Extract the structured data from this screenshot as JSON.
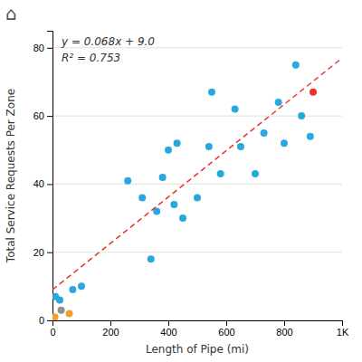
{
  "chart_data": {
    "type": "scatter",
    "x_label": "Length of Pipe (mi)",
    "y_label": "Total Service Requests Per Zone",
    "xlim": [
      0,
      1000
    ],
    "ylim": [
      0,
      85
    ],
    "xticks": [
      0,
      200,
      400,
      600,
      800,
      {
        "value": 1000,
        "label": "1K"
      }
    ],
    "yticks": [
      0,
      20,
      40,
      60,
      80
    ],
    "grid": "y",
    "annotations": [
      "⌂",
      "y = 0.068x + 9.0",
      "R² = 0.753"
    ],
    "series": [
      {
        "type": "scatter",
        "marker": "circle",
        "color": "#29a8e0",
        "x": [
          10,
          70,
          100,
          25,
          260,
          310,
          340,
          360,
          380,
          400,
          420,
          430,
          450,
          500,
          540,
          550,
          580,
          630,
          650,
          700,
          730,
          780,
          800,
          840,
          860,
          890
        ],
        "values": [
          7,
          9,
          10,
          6,
          41,
          36,
          18,
          32,
          42,
          50,
          34,
          52,
          30,
          36,
          51,
          67,
          43,
          62,
          51,
          43,
          55,
          64,
          52,
          75,
          60,
          54
        ]
      },
      {
        "type": "scatter",
        "marker": "circle",
        "color": "#e8342a",
        "x": [
          900
        ],
        "values": [
          67
        ]
      },
      {
        "type": "scatter",
        "marker": "circle",
        "color": "#f0a030",
        "x": [
          8,
          58
        ],
        "values": [
          1,
          2
        ]
      },
      {
        "type": "scatter",
        "marker": "circle",
        "color": "#909090",
        "x": [
          30
        ],
        "values": [
          3
        ]
      },
      {
        "type": "line",
        "line_style": "dashed",
        "color": "#e8342a",
        "x": [
          0,
          1000
        ],
        "values": [
          9.0,
          77.0
        ]
      }
    ]
  }
}
